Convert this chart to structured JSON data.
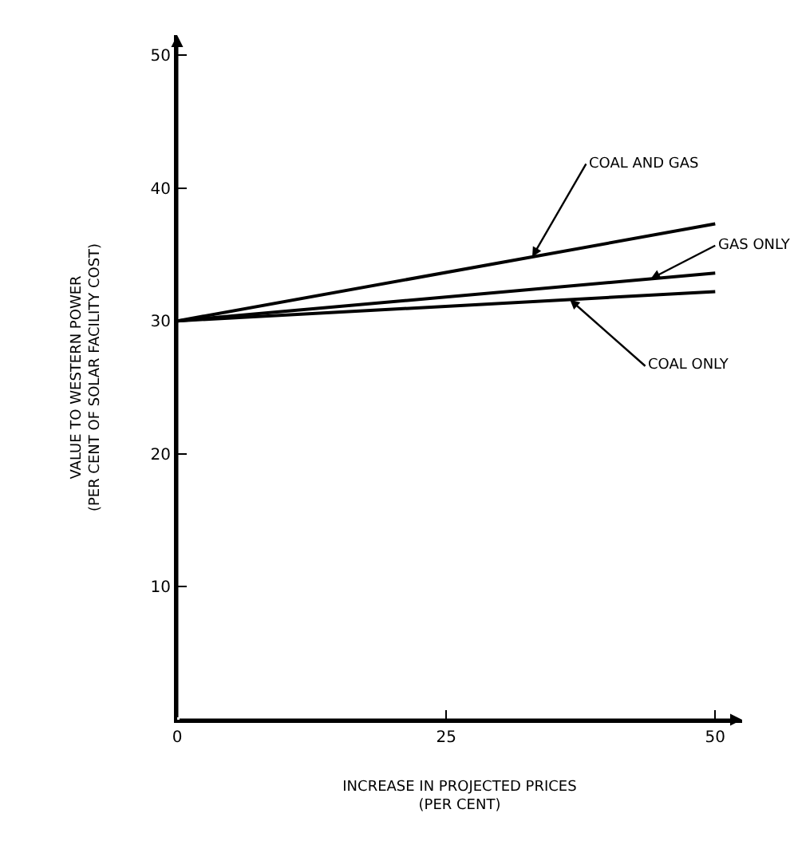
{
  "chart_data": {
    "type": "line",
    "xlabel": "INCREASE IN PROJECTED PRICES\n(PER CENT)",
    "ylabel": "VALUE TO WESTERN POWER\n(PER CENT OF SOLAR FACILITY COST)",
    "x": [
      0,
      50
    ],
    "series": [
      {
        "name": "COAL AND GAS",
        "color": "#000000",
        "values": [
          30,
          37.3
        ]
      },
      {
        "name": "GAS ONLY",
        "color": "#000000",
        "values": [
          30,
          33.6
        ]
      },
      {
        "name": "COAL ONLY",
        "color": "#000000",
        "values": [
          30,
          32.2
        ]
      }
    ],
    "xlim": [
      0,
      52.5
    ],
    "ylim": [
      0,
      51.5
    ],
    "xticks": [
      0,
      25,
      50
    ],
    "yticks": [
      10,
      20,
      30,
      40,
      50
    ],
    "grid": false,
    "legend": false,
    "marker": "none",
    "line_style": "solid"
  }
}
